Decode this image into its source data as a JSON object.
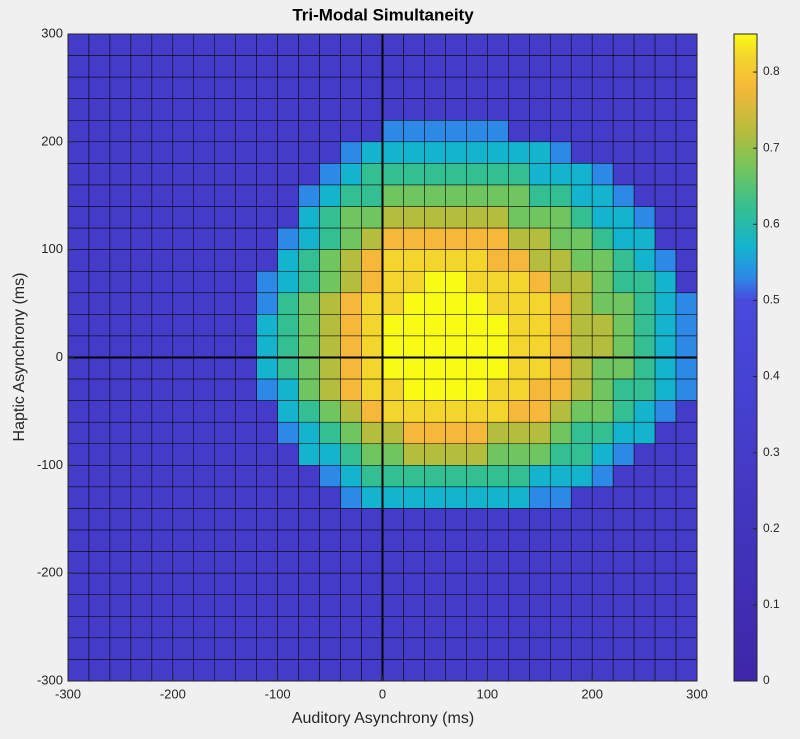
{
  "chart_data": {
    "type": "heatmap",
    "title": "Tri-Modal Simultaneity",
    "x_label": "Auditory Asynchrony (ms)",
    "y_label": "Haptic Asynchrony (ms)",
    "x": [
      -290,
      -270,
      -250,
      -230,
      -210,
      -190,
      -170,
      -150,
      -130,
      -110,
      -90,
      -70,
      -50,
      -30,
      -10,
      10,
      30,
      50,
      70,
      90,
      110,
      130,
      150,
      170,
      190,
      210,
      230,
      250,
      270,
      290
    ],
    "y": [
      290,
      270,
      250,
      230,
      210,
      190,
      170,
      150,
      130,
      110,
      90,
      70,
      50,
      30,
      10,
      -10,
      -30,
      -50,
      -70,
      -90,
      -110,
      -130,
      -150,
      -170,
      -190,
      -210,
      -230,
      -250,
      -270,
      -290
    ],
    "z": [
      [
        0.3,
        0.3,
        0.3,
        0.3,
        0.3,
        0.3,
        0.3,
        0.3,
        0.3,
        0.3,
        0.3,
        0.3,
        0.3,
        0.3,
        0.3,
        0.3,
        0.3,
        0.3,
        0.3,
        0.3,
        0.3,
        0.3,
        0.3,
        0.3,
        0.3,
        0.3,
        0.3,
        0.3,
        0.3,
        0.3
      ],
      [
        0.3,
        0.3,
        0.3,
        0.3,
        0.3,
        0.3,
        0.3,
        0.3,
        0.3,
        0.3,
        0.3,
        0.3,
        0.3,
        0.3,
        0.3,
        0.3,
        0.3,
        0.3,
        0.3,
        0.3,
        0.3,
        0.3,
        0.3,
        0.3,
        0.3,
        0.3,
        0.3,
        0.3,
        0.3,
        0.3
      ],
      [
        0.3,
        0.3,
        0.3,
        0.3,
        0.3,
        0.3,
        0.3,
        0.3,
        0.3,
        0.3,
        0.3,
        0.3,
        0.3,
        0.3,
        0.3,
        0.3,
        0.3,
        0.3,
        0.3,
        0.3,
        0.3,
        0.3,
        0.3,
        0.3,
        0.3,
        0.3,
        0.3,
        0.3,
        0.3,
        0.3
      ],
      [
        0.3,
        0.3,
        0.3,
        0.3,
        0.3,
        0.3,
        0.3,
        0.3,
        0.3,
        0.3,
        0.3,
        0.3,
        0.3,
        0.3,
        0.3,
        0.3,
        0.3,
        0.3,
        0.3,
        0.3,
        0.3,
        0.3,
        0.3,
        0.3,
        0.3,
        0.3,
        0.3,
        0.3,
        0.3,
        0.3
      ],
      [
        0.3,
        0.3,
        0.3,
        0.3,
        0.3,
        0.3,
        0.3,
        0.3,
        0.3,
        0.3,
        0.3,
        0.3,
        0.3,
        0.3,
        0.3,
        0.53,
        0.53,
        0.53,
        0.53,
        0.53,
        0.53,
        0.3,
        0.3,
        0.3,
        0.3,
        0.3,
        0.3,
        0.3,
        0.3,
        0.3
      ],
      [
        0.3,
        0.3,
        0.3,
        0.3,
        0.3,
        0.3,
        0.3,
        0.3,
        0.3,
        0.3,
        0.3,
        0.3,
        0.3,
        0.53,
        0.57,
        0.57,
        0.57,
        0.57,
        0.57,
        0.57,
        0.57,
        0.57,
        0.57,
        0.53,
        0.3,
        0.3,
        0.3,
        0.3,
        0.3,
        0.3
      ],
      [
        0.3,
        0.3,
        0.3,
        0.3,
        0.3,
        0.3,
        0.3,
        0.3,
        0.3,
        0.3,
        0.3,
        0.3,
        0.53,
        0.57,
        0.62,
        0.62,
        0.62,
        0.62,
        0.62,
        0.62,
        0.62,
        0.62,
        0.57,
        0.57,
        0.57,
        0.53,
        0.3,
        0.3,
        0.3,
        0.3
      ],
      [
        0.3,
        0.3,
        0.3,
        0.3,
        0.3,
        0.3,
        0.3,
        0.3,
        0.3,
        0.3,
        0.3,
        0.53,
        0.57,
        0.62,
        0.62,
        0.67,
        0.67,
        0.67,
        0.67,
        0.67,
        0.67,
        0.67,
        0.62,
        0.62,
        0.57,
        0.57,
        0.53,
        0.3,
        0.3,
        0.3
      ],
      [
        0.3,
        0.3,
        0.3,
        0.3,
        0.3,
        0.3,
        0.3,
        0.3,
        0.3,
        0.3,
        0.3,
        0.57,
        0.62,
        0.67,
        0.67,
        0.72,
        0.72,
        0.72,
        0.72,
        0.72,
        0.72,
        0.67,
        0.67,
        0.67,
        0.62,
        0.57,
        0.57,
        0.53,
        0.3,
        0.3
      ],
      [
        0.3,
        0.3,
        0.3,
        0.3,
        0.3,
        0.3,
        0.3,
        0.3,
        0.3,
        0.3,
        0.53,
        0.57,
        0.62,
        0.67,
        0.72,
        0.78,
        0.78,
        0.78,
        0.78,
        0.78,
        0.78,
        0.72,
        0.72,
        0.67,
        0.67,
        0.62,
        0.57,
        0.57,
        0.3,
        0.3
      ],
      [
        0.3,
        0.3,
        0.3,
        0.3,
        0.3,
        0.3,
        0.3,
        0.3,
        0.3,
        0.3,
        0.57,
        0.62,
        0.67,
        0.72,
        0.78,
        0.82,
        0.82,
        0.82,
        0.82,
        0.82,
        0.78,
        0.78,
        0.72,
        0.72,
        0.67,
        0.67,
        0.62,
        0.57,
        0.53,
        0.3
      ],
      [
        0.3,
        0.3,
        0.3,
        0.3,
        0.3,
        0.3,
        0.3,
        0.3,
        0.3,
        0.53,
        0.57,
        0.62,
        0.67,
        0.72,
        0.78,
        0.82,
        0.82,
        0.85,
        0.85,
        0.82,
        0.82,
        0.82,
        0.78,
        0.72,
        0.72,
        0.67,
        0.62,
        0.62,
        0.57,
        0.3
      ],
      [
        0.3,
        0.3,
        0.3,
        0.3,
        0.3,
        0.3,
        0.3,
        0.3,
        0.3,
        0.53,
        0.62,
        0.67,
        0.72,
        0.78,
        0.82,
        0.82,
        0.85,
        0.85,
        0.85,
        0.85,
        0.82,
        0.82,
        0.82,
        0.78,
        0.72,
        0.67,
        0.67,
        0.62,
        0.57,
        0.53
      ],
      [
        0.3,
        0.3,
        0.3,
        0.3,
        0.3,
        0.3,
        0.3,
        0.3,
        0.3,
        0.57,
        0.62,
        0.67,
        0.72,
        0.78,
        0.82,
        0.85,
        0.85,
        0.85,
        0.85,
        0.85,
        0.85,
        0.82,
        0.82,
        0.78,
        0.72,
        0.72,
        0.67,
        0.62,
        0.57,
        0.53
      ],
      [
        0.3,
        0.3,
        0.3,
        0.3,
        0.3,
        0.3,
        0.3,
        0.3,
        0.3,
        0.57,
        0.62,
        0.67,
        0.72,
        0.78,
        0.82,
        0.85,
        0.85,
        0.85,
        0.85,
        0.85,
        0.85,
        0.82,
        0.82,
        0.78,
        0.72,
        0.72,
        0.67,
        0.62,
        0.57,
        0.53
      ],
      [
        0.3,
        0.3,
        0.3,
        0.3,
        0.3,
        0.3,
        0.3,
        0.3,
        0.3,
        0.57,
        0.62,
        0.67,
        0.72,
        0.78,
        0.82,
        0.85,
        0.85,
        0.85,
        0.85,
        0.85,
        0.85,
        0.82,
        0.82,
        0.78,
        0.72,
        0.67,
        0.67,
        0.62,
        0.57,
        0.53
      ],
      [
        0.3,
        0.3,
        0.3,
        0.3,
        0.3,
        0.3,
        0.3,
        0.3,
        0.3,
        0.53,
        0.57,
        0.67,
        0.72,
        0.78,
        0.82,
        0.82,
        0.85,
        0.85,
        0.85,
        0.85,
        0.82,
        0.82,
        0.78,
        0.78,
        0.72,
        0.67,
        0.62,
        0.62,
        0.57,
        0.53
      ],
      [
        0.3,
        0.3,
        0.3,
        0.3,
        0.3,
        0.3,
        0.3,
        0.3,
        0.3,
        0.3,
        0.57,
        0.62,
        0.67,
        0.72,
        0.78,
        0.82,
        0.82,
        0.82,
        0.82,
        0.82,
        0.82,
        0.78,
        0.78,
        0.72,
        0.67,
        0.67,
        0.62,
        0.57,
        0.53,
        0.3
      ],
      [
        0.3,
        0.3,
        0.3,
        0.3,
        0.3,
        0.3,
        0.3,
        0.3,
        0.3,
        0.3,
        0.53,
        0.57,
        0.62,
        0.67,
        0.72,
        0.72,
        0.78,
        0.78,
        0.78,
        0.78,
        0.72,
        0.72,
        0.72,
        0.67,
        0.62,
        0.62,
        0.57,
        0.57,
        0.3,
        0.3
      ],
      [
        0.3,
        0.3,
        0.3,
        0.3,
        0.3,
        0.3,
        0.3,
        0.3,
        0.3,
        0.3,
        0.3,
        0.57,
        0.57,
        0.62,
        0.67,
        0.67,
        0.72,
        0.72,
        0.72,
        0.72,
        0.67,
        0.67,
        0.67,
        0.62,
        0.62,
        0.57,
        0.53,
        0.3,
        0.3,
        0.3
      ],
      [
        0.3,
        0.3,
        0.3,
        0.3,
        0.3,
        0.3,
        0.3,
        0.3,
        0.3,
        0.3,
        0.3,
        0.3,
        0.53,
        0.57,
        0.62,
        0.62,
        0.62,
        0.62,
        0.62,
        0.62,
        0.62,
        0.62,
        0.57,
        0.57,
        0.57,
        0.53,
        0.3,
        0.3,
        0.3,
        0.3
      ],
      [
        0.3,
        0.3,
        0.3,
        0.3,
        0.3,
        0.3,
        0.3,
        0.3,
        0.3,
        0.3,
        0.3,
        0.3,
        0.3,
        0.53,
        0.57,
        0.57,
        0.57,
        0.57,
        0.57,
        0.57,
        0.57,
        0.57,
        0.53,
        0.53,
        0.3,
        0.3,
        0.3,
        0.3,
        0.3,
        0.3
      ],
      [
        0.3,
        0.3,
        0.3,
        0.3,
        0.3,
        0.3,
        0.3,
        0.3,
        0.3,
        0.3,
        0.3,
        0.3,
        0.3,
        0.3,
        0.3,
        0.3,
        0.3,
        0.3,
        0.3,
        0.3,
        0.3,
        0.3,
        0.3,
        0.3,
        0.3,
        0.3,
        0.3,
        0.3,
        0.3,
        0.3
      ],
      [
        0.3,
        0.3,
        0.3,
        0.3,
        0.3,
        0.3,
        0.3,
        0.3,
        0.3,
        0.3,
        0.3,
        0.3,
        0.3,
        0.3,
        0.3,
        0.3,
        0.3,
        0.3,
        0.3,
        0.3,
        0.3,
        0.3,
        0.3,
        0.3,
        0.3,
        0.3,
        0.3,
        0.3,
        0.3,
        0.3
      ],
      [
        0.3,
        0.3,
        0.3,
        0.3,
        0.3,
        0.3,
        0.3,
        0.3,
        0.3,
        0.3,
        0.3,
        0.3,
        0.3,
        0.3,
        0.3,
        0.3,
        0.3,
        0.3,
        0.3,
        0.3,
        0.3,
        0.3,
        0.3,
        0.3,
        0.3,
        0.3,
        0.3,
        0.3,
        0.3,
        0.3
      ],
      [
        0.3,
        0.3,
        0.3,
        0.3,
        0.3,
        0.3,
        0.3,
        0.3,
        0.3,
        0.3,
        0.3,
        0.3,
        0.3,
        0.3,
        0.3,
        0.3,
        0.3,
        0.3,
        0.3,
        0.3,
        0.3,
        0.3,
        0.3,
        0.3,
        0.3,
        0.3,
        0.3,
        0.3,
        0.3,
        0.3
      ],
      [
        0.3,
        0.3,
        0.3,
        0.3,
        0.3,
        0.3,
        0.3,
        0.3,
        0.3,
        0.3,
        0.3,
        0.3,
        0.3,
        0.3,
        0.3,
        0.3,
        0.3,
        0.3,
        0.3,
        0.3,
        0.3,
        0.3,
        0.3,
        0.3,
        0.3,
        0.3,
        0.3,
        0.3,
        0.3,
        0.3
      ],
      [
        0.3,
        0.3,
        0.3,
        0.3,
        0.3,
        0.3,
        0.3,
        0.3,
        0.3,
        0.3,
        0.3,
        0.3,
        0.3,
        0.3,
        0.3,
        0.3,
        0.3,
        0.3,
        0.3,
        0.3,
        0.3,
        0.3,
        0.3,
        0.3,
        0.3,
        0.3,
        0.3,
        0.3,
        0.3,
        0.3
      ],
      [
        0.3,
        0.3,
        0.3,
        0.3,
        0.3,
        0.3,
        0.3,
        0.3,
        0.3,
        0.3,
        0.3,
        0.3,
        0.3,
        0.3,
        0.3,
        0.3,
        0.3,
        0.3,
        0.3,
        0.3,
        0.3,
        0.3,
        0.3,
        0.3,
        0.3,
        0.3,
        0.3,
        0.3,
        0.3,
        0.3
      ],
      [
        0.3,
        0.3,
        0.3,
        0.3,
        0.3,
        0.3,
        0.3,
        0.3,
        0.3,
        0.3,
        0.3,
        0.3,
        0.3,
        0.3,
        0.3,
        0.3,
        0.3,
        0.3,
        0.3,
        0.3,
        0.3,
        0.3,
        0.3,
        0.3,
        0.3,
        0.3,
        0.3,
        0.3,
        0.3,
        0.3
      ]
    ],
    "xlim": [
      -300,
      300
    ],
    "xticks": [
      -300,
      -200,
      -100,
      0,
      100,
      200,
      300
    ],
    "ylim": [
      -300,
      300
    ],
    "yticks": [
      -300,
      -200,
      -100,
      0,
      100,
      200,
      300
    ],
    "clim": [
      0,
      0.85
    ],
    "cticks": [
      0,
      0.1,
      0.2,
      0.3,
      0.4,
      0.5,
      0.6,
      0.7,
      0.8
    ],
    "colormap": [
      [
        0,
        "#3e26a8"
      ],
      [
        0.5,
        "#484ade"
      ],
      [
        0.53,
        "#2d88e6"
      ],
      [
        0.57,
        "#14b4cf"
      ],
      [
        0.62,
        "#33bf93"
      ],
      [
        0.67,
        "#6fc560"
      ],
      [
        0.72,
        "#b4bd3e"
      ],
      [
        0.78,
        "#f6b83a"
      ],
      [
        0.82,
        "#f4d52b"
      ],
      [
        0.85,
        "#f9fb14"
      ]
    ],
    "cell_edge_color": "#000000",
    "origin_lines": true
  }
}
